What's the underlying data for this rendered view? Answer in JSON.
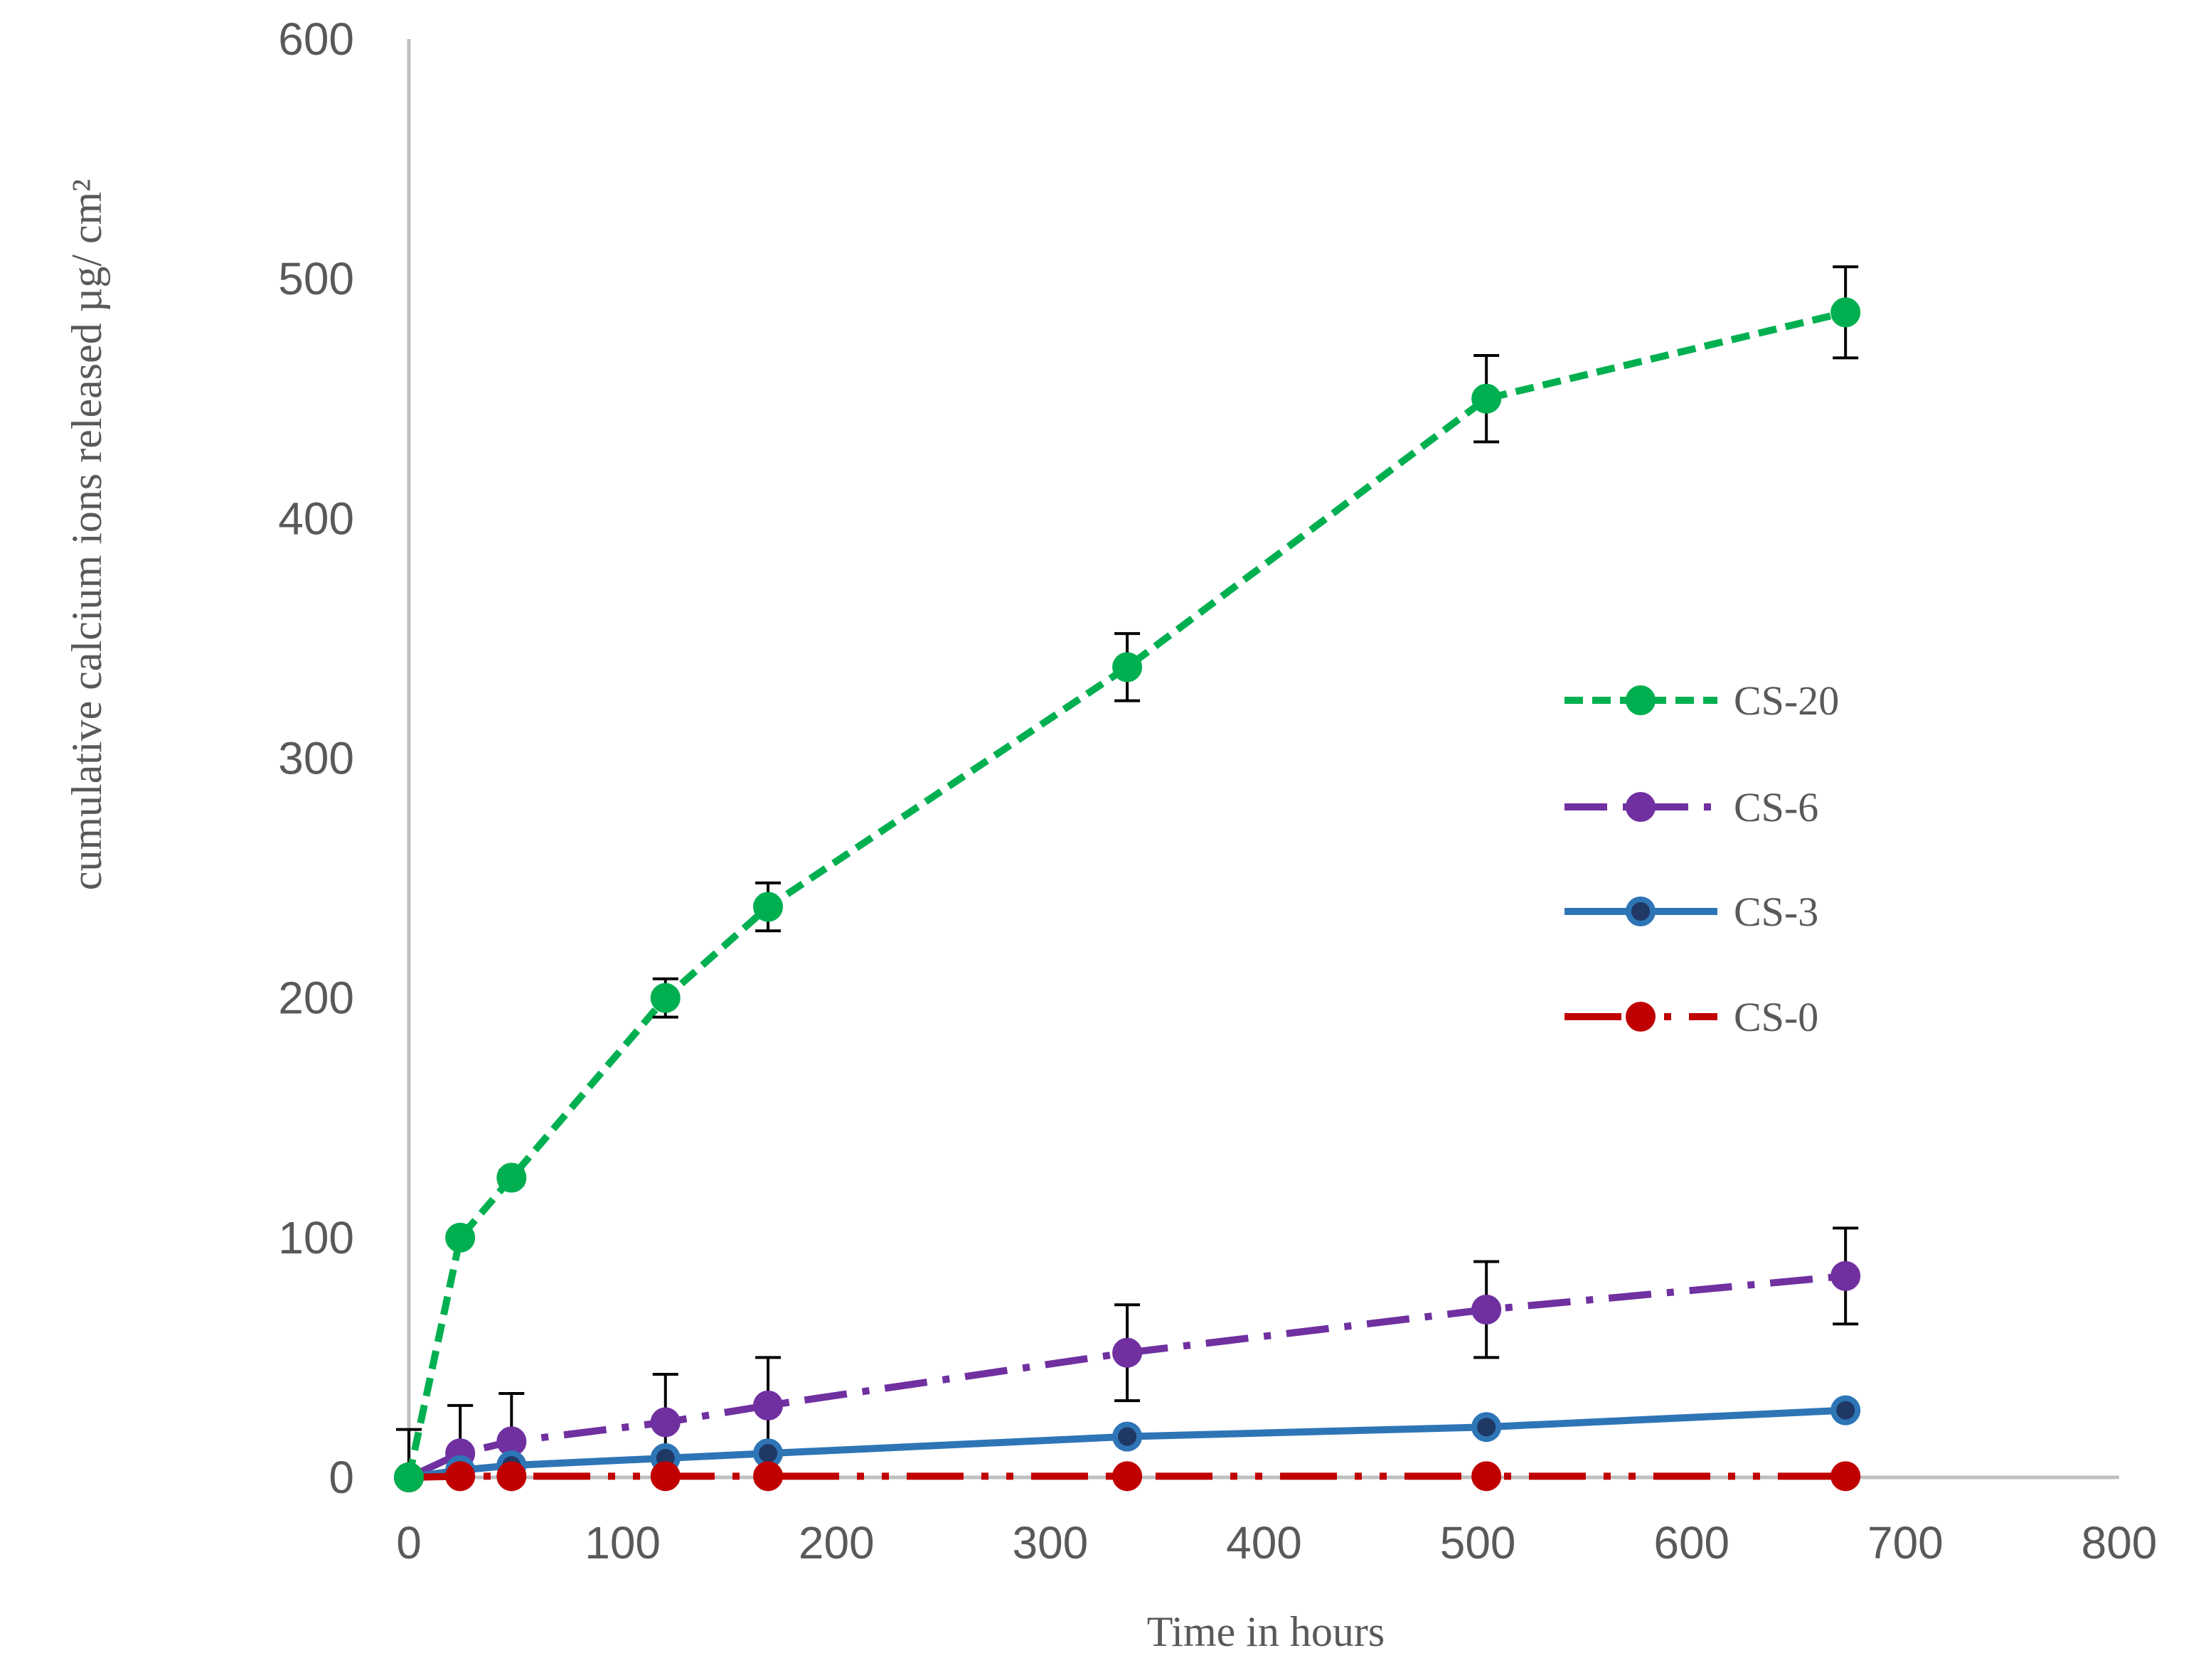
{
  "chart_data": {
    "type": "line",
    "title": "",
    "xlabel": "Time in hours",
    "ylabel": "cumulative calcium ions released  µg/ cm²",
    "xlim": [
      0,
      800
    ],
    "ylim": [
      0,
      600
    ],
    "xticks": [
      0,
      100,
      200,
      300,
      400,
      500,
      600,
      700,
      800
    ],
    "yticks": [
      0,
      100,
      200,
      300,
      400,
      500,
      600
    ],
    "x_tick_labels": [
      "0",
      "100",
      "200",
      "300",
      "400",
      "500",
      "600",
      "700",
      "800"
    ],
    "y_tick_labels": [
      "0",
      "100",
      "200",
      "300",
      "400",
      "500",
      "600"
    ],
    "grid": false,
    "legend_position": "right",
    "x": [
      0,
      24,
      48,
      120,
      168,
      336,
      504,
      672
    ],
    "series": [
      {
        "name": "CS-20",
        "color": "#00B050",
        "line_style": "dashed",
        "marker": "circle",
        "values": [
          0,
          100,
          125,
          200,
          238,
          338,
          450,
          486
        ],
        "error": [
          0,
          0,
          3,
          8,
          10,
          14,
          18,
          19
        ]
      },
      {
        "name": "CS-6",
        "color": "#7030A0",
        "line_style": "dash-dot",
        "marker": "circle",
        "values": [
          0,
          10,
          15,
          23,
          30,
          52,
          70,
          84
        ],
        "error": [
          20,
          20,
          20,
          20,
          20,
          20,
          20,
          20
        ]
      },
      {
        "name": "CS-3",
        "color": "#2E75B6",
        "marker_fill": "#1F3864",
        "line_style": "solid",
        "marker": "circle",
        "values": [
          0,
          3,
          5,
          8,
          10,
          17,
          21,
          28
        ],
        "error": [
          0,
          0,
          0,
          0,
          0,
          0,
          0,
          0
        ]
      },
      {
        "name": "CS-0",
        "color": "#C00000",
        "line_style": "long-dash-dot-dot",
        "marker": "circle",
        "values": [
          0,
          0.5,
          0.5,
          0.5,
          0.5,
          0.5,
          0.5,
          0.5
        ],
        "error": [
          0,
          0,
          0,
          0,
          0,
          0,
          0,
          0
        ]
      }
    ]
  }
}
